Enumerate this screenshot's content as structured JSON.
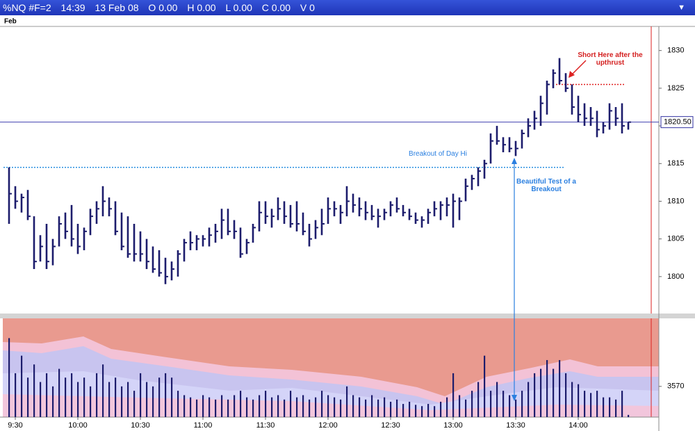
{
  "header": {
    "symbol": "%NQ #F=2",
    "time": "14:39",
    "date": "13 Feb 08",
    "open": "O 0.00",
    "high": "H 0.00",
    "low": "L 0.00",
    "close": "C 0.00",
    "volume": "V 0"
  },
  "period_label": "Feb",
  "chart_data": [
    {
      "type": "ohlc",
      "color": "#1c1c6c",
      "categories": [
        null,
        "9:30",
        null,
        null,
        null,
        null,
        null,
        null,
        null,
        null,
        null,
        "10:00",
        null,
        null,
        null,
        null,
        null,
        null,
        null,
        null,
        null,
        "10:30",
        null,
        null,
        null,
        null,
        null,
        null,
        null,
        null,
        null,
        "11:00",
        null,
        null,
        null,
        null,
        null,
        null,
        null,
        null,
        null,
        "11:30",
        null,
        null,
        null,
        null,
        null,
        null,
        null,
        null,
        null,
        "12:00",
        null,
        null,
        null,
        null,
        null,
        null,
        null,
        null,
        null,
        "12:30",
        null,
        null,
        null,
        null,
        null,
        null,
        null,
        null,
        null,
        "13:00",
        null,
        null,
        null,
        null,
        null,
        null,
        null,
        null,
        null,
        "13:30",
        null,
        null,
        null,
        null,
        null,
        null,
        null,
        null,
        null,
        "14:00",
        null,
        null,
        null,
        null,
        null,
        null,
        null,
        null
      ],
      "high": [
        1814.5,
        1812,
        1811,
        1811.5,
        1808,
        1805.5,
        1807,
        1805,
        1808,
        1808.5,
        1809.5,
        1807,
        1806.5,
        1809,
        1810,
        1812,
        1810.5,
        1810,
        1808.5,
        1808,
        1807,
        1806,
        1805,
        1804,
        1803.5,
        1802.5,
        1802,
        1803.5,
        1805,
        1806,
        1805.5,
        1805.5,
        1806.5,
        1807,
        1809,
        1809,
        1807.5,
        1806.5,
        1805,
        1807,
        1810,
        1810,
        1809,
        1810.5,
        1810,
        1809.5,
        1810,
        1808.5,
        1807,
        1807.5,
        1809,
        1810.5,
        1810,
        1809.5,
        1812,
        1811,
        1810.5,
        1810,
        1809.5,
        1809,
        1809,
        1810,
        1810.5,
        1809.5,
        1809,
        1808.5,
        1808,
        1809,
        1810,
        1810,
        1810.5,
        1811,
        1810.5,
        1813,
        1813.5,
        1814.5,
        1815.5,
        1819,
        1820,
        1818.5,
        1818.5,
        1818,
        1819.5,
        1821,
        1822,
        1824,
        1826,
        1827.5,
        1829,
        1827,
        1825.5,
        1824,
        1823,
        1822.5,
        1822,
        1820.5,
        1823,
        1822.5,
        1823,
        1820.5
      ],
      "low": [
        1807,
        1809,
        1808.5,
        1807.5,
        1801,
        1802,
        1801,
        1801.5,
        1804,
        1805,
        1804,
        1803,
        1803.5,
        1805.5,
        1807,
        1808,
        1808,
        1805.5,
        1803.5,
        1802.5,
        1802,
        1802,
        1801,
        1800.5,
        1800,
        1799,
        1799.5,
        1800,
        1802,
        1803.5,
        1803.5,
        1804,
        1804,
        1804.5,
        1805,
        1805.5,
        1805,
        1802.5,
        1803,
        1804.5,
        1806,
        1807,
        1806.5,
        1807.5,
        1807,
        1806.5,
        1806,
        1805.5,
        1804,
        1805,
        1805.5,
        1807,
        1808,
        1807,
        1808,
        1808.5,
        1808,
        1807.5,
        1807.5,
        1806.5,
        1807.5,
        1808,
        1808.5,
        1808,
        1807.5,
        1807,
        1806.5,
        1807,
        1808,
        1807.5,
        1808,
        1806.5,
        1807.5,
        1810,
        1811.5,
        1812,
        1813,
        1815,
        1817.5,
        1816.5,
        1816.5,
        1816,
        1817,
        1818.5,
        1819.5,
        1820,
        1821.5,
        1825,
        1825.5,
        1824.5,
        1821.5,
        1820.5,
        1820,
        1820,
        1818.5,
        1819,
        1819.5,
        1820,
        1819,
        1819.5
      ],
      "close": [
        1811,
        1810,
        1810.5,
        1808,
        1802,
        1804,
        1802,
        1804,
        1807,
        1806,
        1805,
        1804,
        1806,
        1808,
        1809,
        1810,
        1809,
        1806,
        1804,
        1803,
        1803,
        1803,
        1802,
        1801,
        1800.5,
        1800,
        1801,
        1803,
        1804.5,
        1804.5,
        1805,
        1805,
        1805.5,
        1806,
        1807.5,
        1806,
        1806,
        1803,
        1804.5,
        1806.5,
        1808.5,
        1808,
        1808,
        1809,
        1808,
        1807,
        1807,
        1806,
        1805,
        1806.5,
        1807,
        1809,
        1809,
        1808.5,
        1810,
        1809.5,
        1809,
        1808.5,
        1808,
        1808,
        1808.5,
        1809.5,
        1809,
        1808.5,
        1808,
        1807.5,
        1807.5,
        1808.5,
        1809,
        1809.5,
        1809.5,
        1810,
        1810,
        1812,
        1813,
        1814,
        1815,
        1818,
        1818,
        1817.5,
        1817,
        1817,
        1819,
        1820,
        1821,
        1823,
        1825.5,
        1827,
        1826,
        1825,
        1822.5,
        1821.5,
        1821,
        1821,
        1819.5,
        1820,
        1822,
        1821,
        1820,
        1820.5
      ],
      "ylim": [
        1795.1,
        1833.2
      ],
      "yticks": [
        1800,
        1805,
        1810,
        1815,
        1820,
        1825,
        1830
      ],
      "last_price": {
        "value": 1820.5,
        "label": "1820.50"
      },
      "breakout_level": 1814.5,
      "short_level": 1825.5,
      "annotations": [
        "Short Here after the upthrust",
        "Breakout of Day Hi",
        "Beautiful Test of a Breakout"
      ]
    },
    {
      "type": "bar",
      "color": "#1c1c6c",
      "values": [
        3680,
        3600,
        3640,
        3590,
        3620,
        3580,
        3600,
        3570,
        3610,
        3590,
        3600,
        3580,
        3590,
        3570,
        3600,
        3620,
        3580,
        3590,
        3570,
        3580,
        3560,
        3600,
        3580,
        3570,
        3590,
        3600,
        3590,
        3560,
        3550,
        3545,
        3540,
        3550,
        3545,
        3540,
        3550,
        3540,
        3550,
        3560,
        3545,
        3540,
        3550,
        3560,
        3545,
        3550,
        3540,
        3560,
        3545,
        3550,
        3540,
        3545,
        3560,
        3550,
        3545,
        3540,
        3570,
        3550,
        3545,
        3540,
        3550,
        3540,
        3545,
        3535,
        3540,
        3530,
        3535,
        3528,
        3525,
        3530,
        3525,
        3535,
        3545,
        3600,
        3550,
        3540,
        3560,
        3580,
        3640,
        3560,
        3580,
        3560,
        3550,
        3540,
        3560,
        3580,
        3600,
        3610,
        3630,
        3610,
        3630,
        3600,
        3580,
        3575,
        3560,
        3555,
        3560,
        3545,
        3545,
        3540,
        3560,
        3505
      ],
      "ylim": [
        3500,
        3725
      ],
      "yticks": [
        3570
      ]
    }
  ]
}
